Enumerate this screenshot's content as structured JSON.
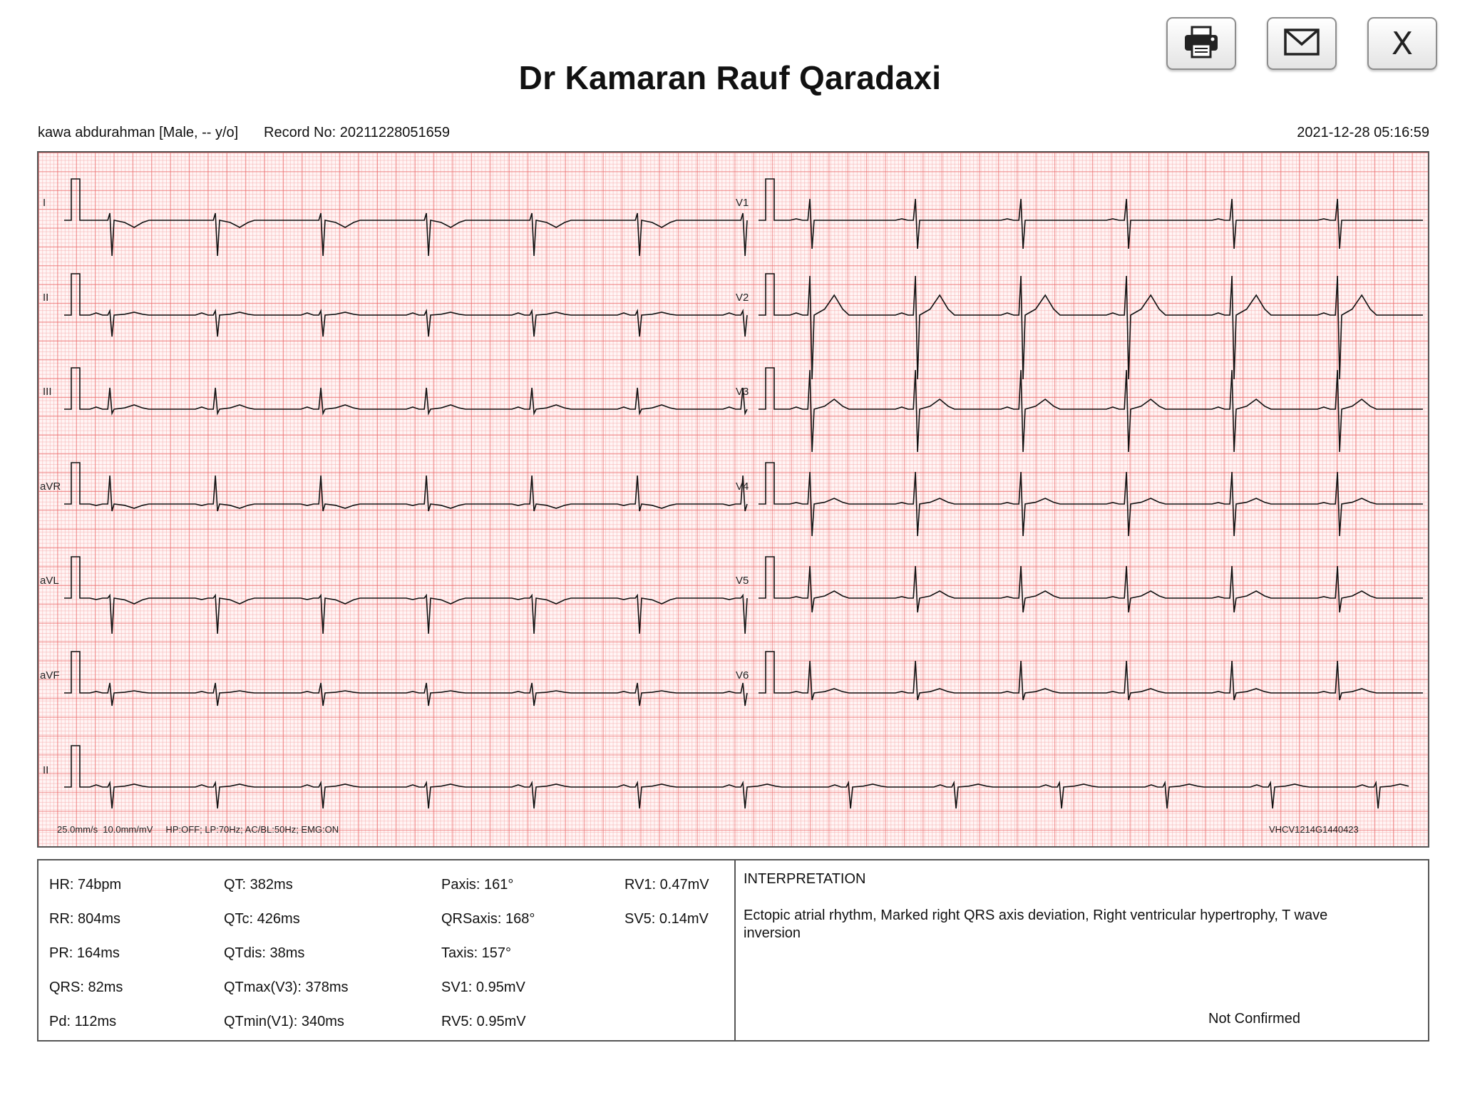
{
  "window": {
    "title": "Dr Kamaran Rauf Qaradaxi",
    "buttons": {
      "print_icon": "printer-icon",
      "email_icon": "envelope-icon",
      "close_label": "X"
    }
  },
  "record": {
    "patient": "kawa abdurahman [Male, -- y/o]",
    "record_no": "Record No: 20211228051659",
    "datetime": "2021-12-28 05:16:59"
  },
  "ecg": {
    "left_leads": [
      "I",
      "II",
      "III",
      "aVR",
      "aVL",
      "aVF"
    ],
    "right_leads": [
      "V1",
      "V2",
      "V3",
      "V4",
      "V5",
      "V6"
    ],
    "rhythm_lead": "II",
    "settings": "25.0mm/s  10.0mm/mV     HP:OFF; LP:70Hz; AC/BL:50Hz; EMG:ON",
    "device_id": "VHCV1214G1440423",
    "grid_colors": {
      "major": "#ec7070",
      "minor": "#f6afaf",
      "trace": "#111111"
    }
  },
  "measurements": {
    "col1": [
      "HR: 74bpm",
      "RR: 804ms",
      "PR: 164ms",
      "QRS: 82ms",
      "Pd: 112ms"
    ],
    "col2": [
      "QT: 382ms",
      "QTc: 426ms",
      "QTdis: 38ms",
      "QTmax(V3): 378ms",
      "QTmin(V1): 340ms"
    ],
    "col3": [
      "Paxis: 161°",
      "QRSaxis: 168°",
      "Taxis: 157°",
      "SV1: 0.95mV",
      "RV5: 0.95mV"
    ],
    "col4": [
      "RV1: 0.47mV",
      "SV5: 0.14mV"
    ]
  },
  "interpretation": {
    "title": "INTERPRETATION",
    "text": "Ectopic atrial rhythm, Marked right QRS axis deviation, Right ventricular hypertrophy, T wave inversion",
    "status": "Not Confirmed"
  }
}
